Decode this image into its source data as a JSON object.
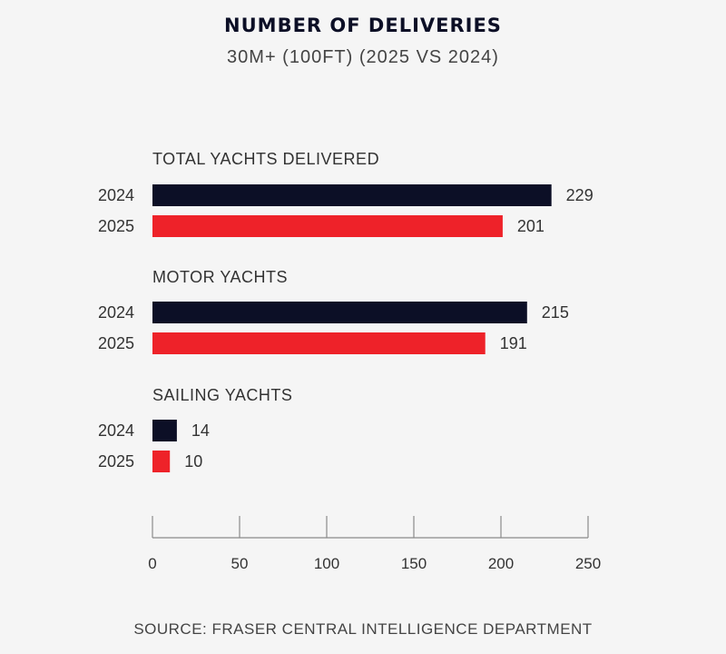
{
  "chart_data": {
    "type": "bar",
    "orientation": "horizontal",
    "title": "NUMBER OF DELIVERIES",
    "subtitle": "30M+ (100FT) (2025 VS 2024)",
    "groups": [
      {
        "label": "TOTAL YACHTS DELIVERED",
        "bars": [
          {
            "year": "2024",
            "value": 229,
            "color": "#0c0f26"
          },
          {
            "year": "2025",
            "value": 201,
            "color": "#ee2229"
          }
        ]
      },
      {
        "label": "MOTOR YACHTS",
        "bars": [
          {
            "year": "2024",
            "value": 215,
            "color": "#0c0f26"
          },
          {
            "year": "2025",
            "value": 191,
            "color": "#ee2229"
          }
        ]
      },
      {
        "label": "SAILING YACHTS",
        "bars": [
          {
            "year": "2024",
            "value": 14,
            "color": "#0c0f26"
          },
          {
            "year": "2025",
            "value": 10,
            "color": "#ee2229"
          }
        ]
      }
    ],
    "xlim": [
      0,
      250
    ],
    "xticks": [
      0,
      50,
      100,
      150,
      200,
      250
    ],
    "grid": false,
    "legend": "none"
  },
  "source": "SOURCE: FRASER CENTRAL INTELLIGENCE DEPARTMENT"
}
